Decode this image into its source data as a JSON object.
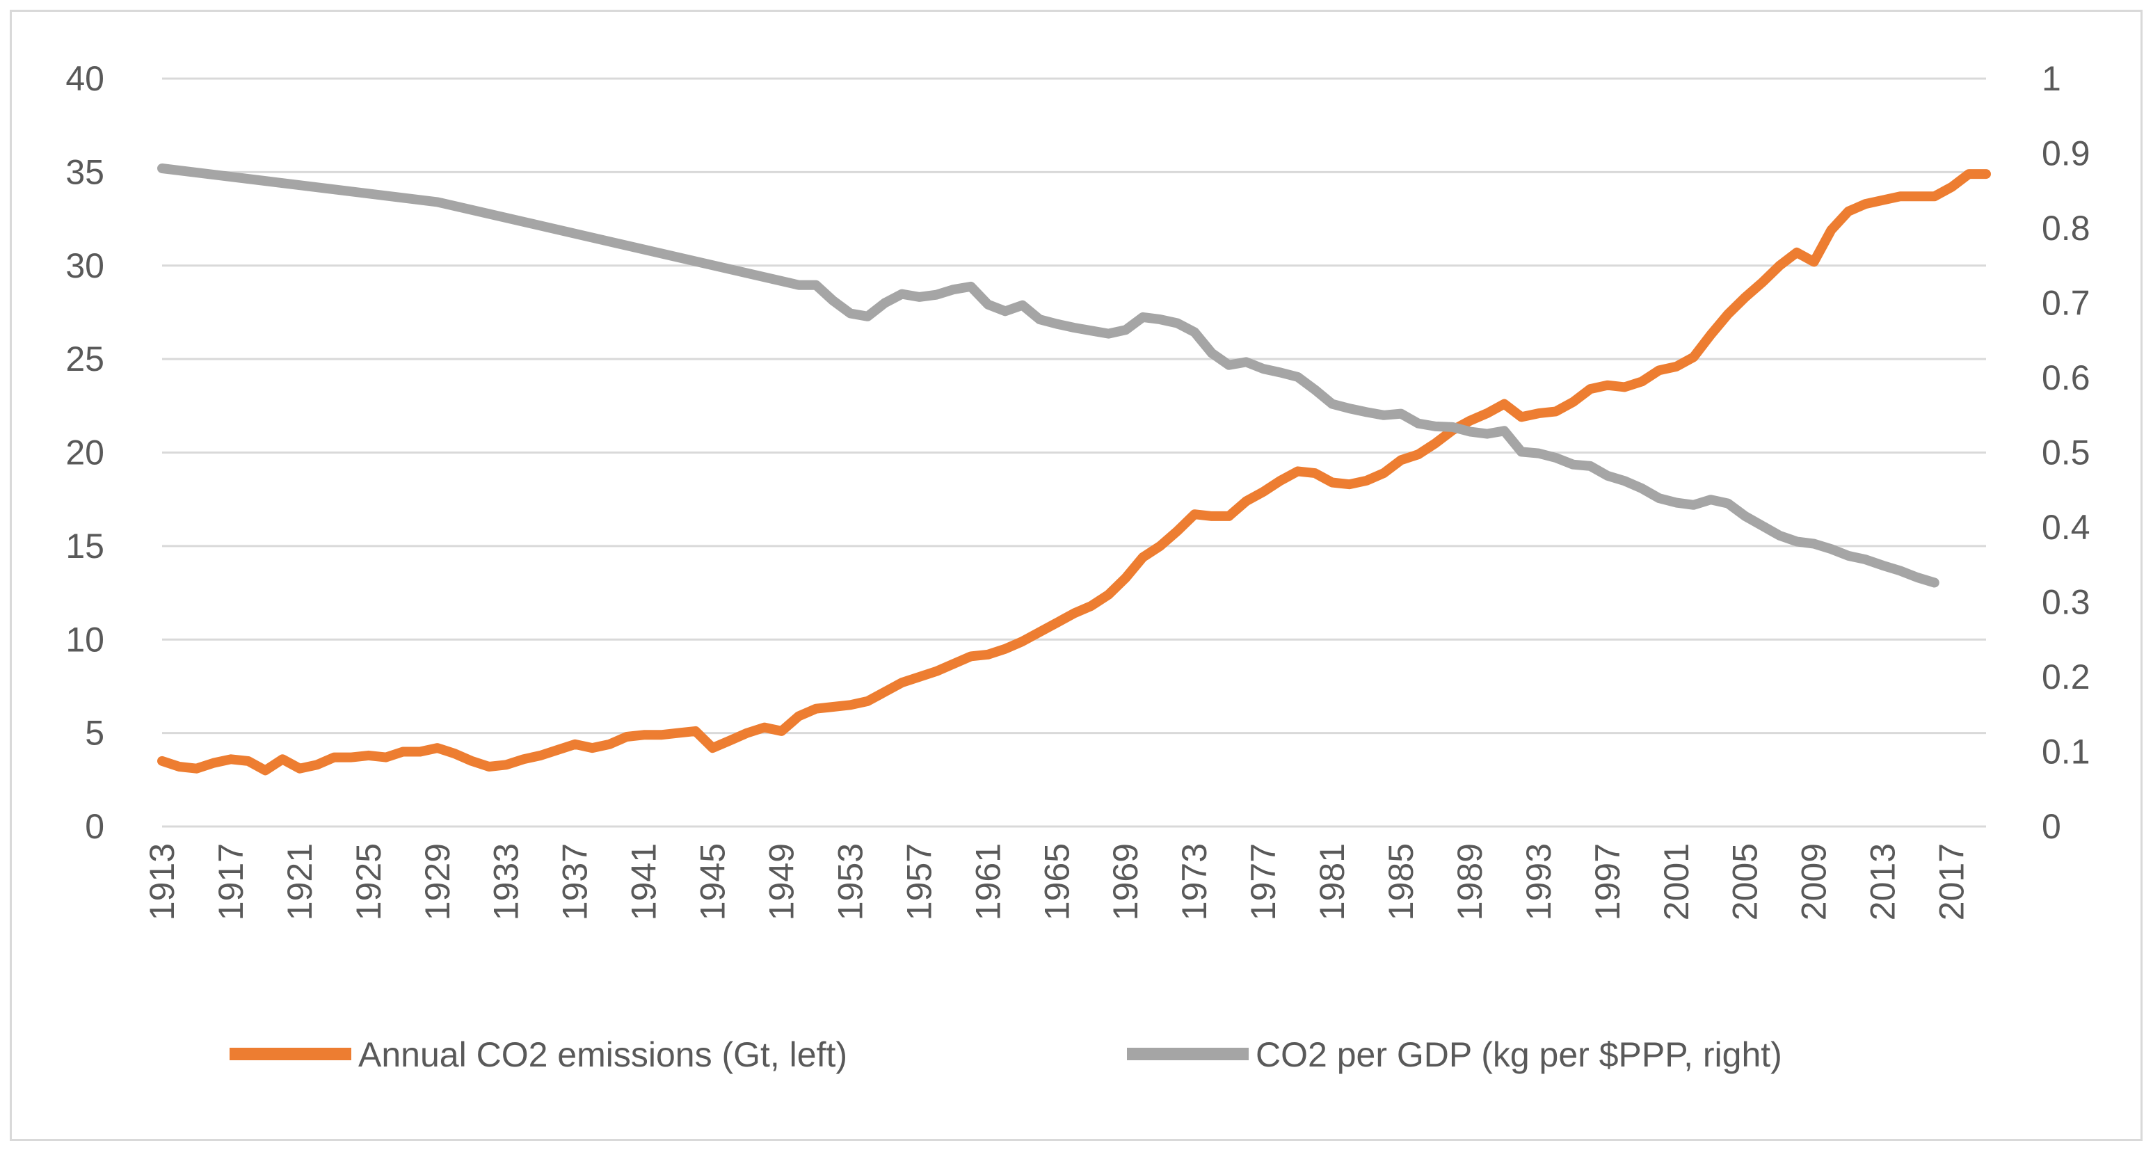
{
  "chart_data": {
    "type": "line",
    "title": "",
    "xlabel": "",
    "ylabel_left": "",
    "ylabel_right": "",
    "x_start": 1913,
    "x_end": 2019,
    "x_tick_labels": [
      "1913",
      "1917",
      "1921",
      "1925",
      "1929",
      "1933",
      "1937",
      "1941",
      "1945",
      "1949",
      "1953",
      "1957",
      "1961",
      "1965",
      "1969",
      "1973",
      "1977",
      "1981",
      "1985",
      "1989",
      "1993",
      "1997",
      "2001",
      "2005",
      "2009",
      "2013",
      "2017"
    ],
    "ylim_left": [
      0,
      40
    ],
    "y_ticks_left": [
      "0",
      "5",
      "10",
      "15",
      "20",
      "25",
      "30",
      "35",
      "40"
    ],
    "ylim_right": [
      0,
      1
    ],
    "y_ticks_right": [
      "0",
      "0.1",
      "0.2",
      "0.3",
      "0.4",
      "0.5",
      "0.6",
      "0.7",
      "0.8",
      "0.9",
      "1"
    ],
    "grid": true,
    "legend_position": "bottom",
    "series": [
      {
        "name": "Annual CO2 emissions (Gt, left)",
        "axis": "left",
        "color": "#ed7d31",
        "x": [
          1913,
          1914,
          1915,
          1916,
          1917,
          1918,
          1919,
          1920,
          1921,
          1922,
          1923,
          1924,
          1925,
          1926,
          1927,
          1928,
          1929,
          1930,
          1931,
          1932,
          1933,
          1934,
          1935,
          1936,
          1937,
          1938,
          1939,
          1940,
          1941,
          1942,
          1943,
          1944,
          1945,
          1946,
          1947,
          1948,
          1949,
          1950,
          1951,
          1952,
          1953,
          1954,
          1955,
          1956,
          1957,
          1958,
          1959,
          1960,
          1961,
          1962,
          1963,
          1964,
          1965,
          1966,
          1967,
          1968,
          1969,
          1970,
          1971,
          1972,
          1973,
          1974,
          1975,
          1976,
          1977,
          1978,
          1979,
          1980,
          1981,
          1982,
          1983,
          1984,
          1985,
          1986,
          1987,
          1988,
          1989,
          1990,
          1991,
          1992,
          1993,
          1994,
          1995,
          1996,
          1997,
          1998,
          1999,
          2000,
          2001,
          2002,
          2003,
          2004,
          2005,
          2006,
          2007,
          2008,
          2009,
          2010,
          2011,
          2012,
          2013,
          2014,
          2015,
          2016,
          2017,
          2018,
          2019
        ],
        "values": [
          3.5,
          3.2,
          3.1,
          3.4,
          3.6,
          3.5,
          3.0,
          3.6,
          3.1,
          3.3,
          3.7,
          3.7,
          3.8,
          3.7,
          4.0,
          4.0,
          4.2,
          3.9,
          3.5,
          3.2,
          3.3,
          3.6,
          3.8,
          4.1,
          4.4,
          4.2,
          4.4,
          4.8,
          4.9,
          4.9,
          5.0,
          5.1,
          4.2,
          4.6,
          5.0,
          5.3,
          5.1,
          5.9,
          6.3,
          6.4,
          6.5,
          6.7,
          7.2,
          7.7,
          8.0,
          8.3,
          8.7,
          9.1,
          9.2,
          9.5,
          9.9,
          10.4,
          10.9,
          11.4,
          11.8,
          12.4,
          13.3,
          14.4,
          15.0,
          15.8,
          16.7,
          16.6,
          16.6,
          17.4,
          17.9,
          18.5,
          19.0,
          18.9,
          18.4,
          18.3,
          18.5,
          18.9,
          19.6,
          19.9,
          20.5,
          21.2,
          21.7,
          22.1,
          22.6,
          21.9,
          22.1,
          22.2,
          22.7,
          23.4,
          23.6,
          23.5,
          23.8,
          24.4,
          24.6,
          25.1,
          26.3,
          27.4,
          28.3,
          29.1,
          30.0,
          30.7,
          30.2,
          31.9,
          32.9,
          33.3,
          33.5,
          33.7,
          33.7,
          33.7,
          34.2,
          34.9,
          34.9
        ]
      },
      {
        "name": "CO2 per GDP (kg per $PPP, right)",
        "axis": "right",
        "color": "#a5a5a5",
        "x": [
          1913,
          1929,
          1950,
          1951,
          1952,
          1953,
          1954,
          1955,
          1956,
          1957,
          1958,
          1959,
          1960,
          1961,
          1962,
          1963,
          1964,
          1965,
          1966,
          1967,
          1968,
          1969,
          1970,
          1971,
          1972,
          1973,
          1974,
          1975,
          1976,
          1977,
          1978,
          1979,
          1980,
          1981,
          1982,
          1983,
          1984,
          1985,
          1986,
          1987,
          1988,
          1989,
          1990,
          1991,
          1992,
          1993,
          1994,
          1995,
          1996,
          1997,
          1998,
          1999,
          2000,
          2001,
          2002,
          2003,
          2004,
          2005,
          2006,
          2007,
          2008,
          2009,
          2010,
          2011,
          2012,
          2013,
          2014,
          2015,
          2016
        ],
        "values": [
          0.88,
          0.835,
          0.724,
          0.724,
          0.703,
          0.686,
          0.682,
          0.7,
          0.712,
          0.708,
          0.711,
          0.718,
          0.722,
          0.698,
          0.689,
          0.697,
          0.678,
          0.672,
          0.667,
          0.663,
          0.659,
          0.664,
          0.681,
          0.678,
          0.673,
          0.661,
          0.633,
          0.617,
          0.621,
          0.612,
          0.607,
          0.601,
          0.584,
          0.565,
          0.559,
          0.554,
          0.55,
          0.552,
          0.539,
          0.535,
          0.534,
          0.528,
          0.525,
          0.529,
          0.501,
          0.499,
          0.493,
          0.484,
          0.482,
          0.469,
          0.462,
          0.452,
          0.439,
          0.433,
          0.43,
          0.437,
          0.432,
          0.415,
          0.402,
          0.389,
          0.381,
          0.378,
          0.371,
          0.362,
          0.357,
          0.349,
          0.342,
          0.333,
          0.326
        ]
      }
    ]
  }
}
